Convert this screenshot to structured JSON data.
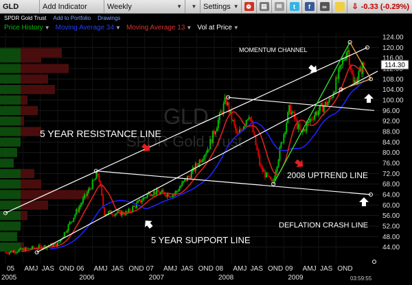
{
  "toolbar": {
    "symbol": "GLD",
    "add_indicator": "Add Indicator",
    "frequency": "Weekly",
    "settings": "Settings",
    "change": "-0.33 (-0.29%)"
  },
  "subheader": {
    "name": "SPDR Gold Trust",
    "add_to_portfolio": "Add to Portfolio",
    "drawings": "Drawings"
  },
  "legend": {
    "price_history": "Price History",
    "ma34": "Moving Average 34",
    "ma13": "Moving Average 13",
    "vol_at_price": "Vol at Price"
  },
  "colors": {
    "price_history": "#00c000",
    "ma34": "#2020ff",
    "ma13": "#e02020",
    "change": "#c00000",
    "up_candle": "#00c000",
    "down_candle": "#e00000"
  },
  "annotations": {
    "momentum_channel": "MOMENTUM CHANNEL",
    "resistance": "5 YEAR RESISTANCE LINE",
    "uptrend": "2008 UPTREND LINE",
    "support": "5 YEAR SUPPORT LINE",
    "deflation": "DEFLATION CRASH LINE"
  },
  "watermark": {
    "symbol": "GLD",
    "name": "SPDR Gold Trust"
  },
  "current_price_label": "114.30",
  "timestamp": "03:59:55",
  "chart_data": {
    "type": "line",
    "title": "",
    "ylim": [
      40,
      124
    ],
    "y_ticks": [
      "124.00",
      "120.00",
      "116.00",
      "112.00",
      "108.00",
      "104.00",
      "100.00",
      "96.00",
      "92.00",
      "88.00",
      "84.00",
      "80.00",
      "76.00",
      "72.00",
      "68.00",
      "64.00",
      "60.00",
      "56.00",
      "52.00",
      "48.00",
      "44.00"
    ],
    "x_tick_labels": [
      "05",
      "AMJ",
      "JAS",
      "OND",
      "06",
      "AMJ",
      "JAS",
      "OND",
      "07",
      "AMJ",
      "JAS",
      "OND",
      "08",
      "AMJ",
      "JAS",
      "OND",
      "09",
      "AMJ",
      "JAS",
      "OND"
    ],
    "x_year_labels": [
      "2005",
      "2006",
      "2007",
      "2008",
      "2009"
    ],
    "price_anchors": [
      {
        "x": "2005-01",
        "y": 42
      },
      {
        "x": "2005-10",
        "y": 45
      },
      {
        "x": "2006-05",
        "y": 72
      },
      {
        "x": "2006-06",
        "y": 57
      },
      {
        "x": "2006-10",
        "y": 57
      },
      {
        "x": "2007-02",
        "y": 65
      },
      {
        "x": "2007-06",
        "y": 64
      },
      {
        "x": "2007-09",
        "y": 72
      },
      {
        "x": "2007-12",
        "y": 82
      },
      {
        "x": "2008-03",
        "y": 100
      },
      {
        "x": "2008-05",
        "y": 86
      },
      {
        "x": "2008-07",
        "y": 95
      },
      {
        "x": "2008-09",
        "y": 74
      },
      {
        "x": "2008-11",
        "y": 68
      },
      {
        "x": "2009-02",
        "y": 97
      },
      {
        "x": "2009-04",
        "y": 87
      },
      {
        "x": "2009-06",
        "y": 94
      },
      {
        "x": "2009-09",
        "y": 100
      },
      {
        "x": "2009-12",
        "y": 120
      },
      {
        "x": "2010-01",
        "y": 106
      },
      {
        "x": "2010-03",
        "y": 114.3
      }
    ],
    "series": [
      {
        "name": "Moving Average 34",
        "values": [
          45,
          48,
          56,
          62,
          63,
          66,
          70,
          80,
          88,
          90,
          88,
          84,
          86,
          90,
          96,
          104,
          108
        ]
      },
      {
        "name": "Moving Average 13",
        "values": [
          44,
          50,
          62,
          60,
          64,
          67,
          74,
          88,
          92,
          86,
          78,
          86,
          92,
          96,
          110,
          108,
          112
        ]
      }
    ]
  }
}
